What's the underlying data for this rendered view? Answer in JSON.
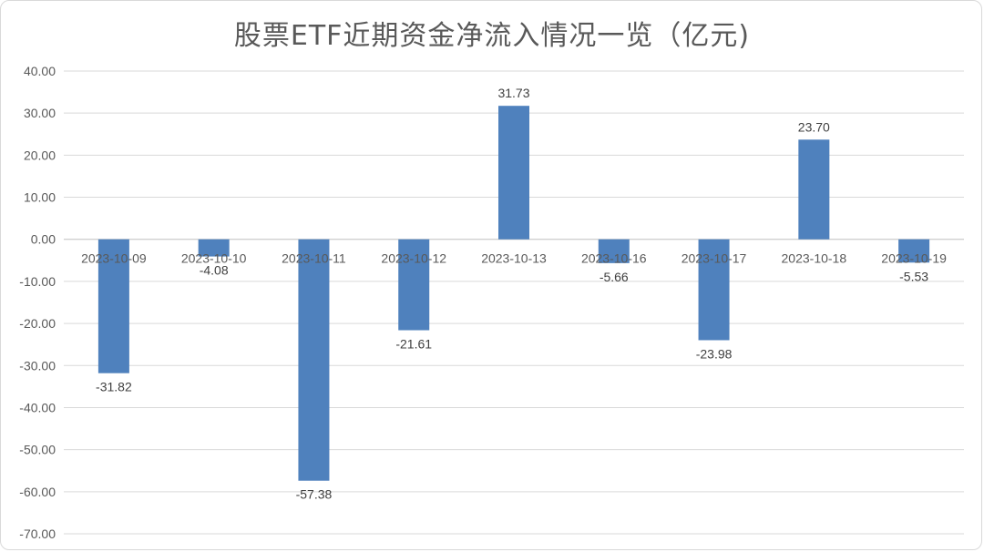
{
  "chart_data": {
    "type": "bar",
    "title": "股票ETF近期资金净流入情况一览（亿元)",
    "categories": [
      "2023-10-09",
      "2023-10-10",
      "2023-10-11",
      "2023-10-12",
      "2023-10-13",
      "2023-10-16",
      "2023-10-17",
      "2023-10-18",
      "2023-10-19"
    ],
    "values": [
      -31.82,
      -4.08,
      -57.38,
      -21.61,
      31.73,
      -5.66,
      -23.98,
      23.7,
      -5.53
    ],
    "data_labels": [
      "-31.82",
      "-4.08",
      "-57.38",
      "-21.61",
      "31.73",
      "-5.66",
      "-23.98",
      "23.70",
      "-5.53"
    ],
    "ylim": [
      -70,
      40
    ],
    "yticks": [
      "40.00",
      "30.00",
      "20.00",
      "10.00",
      "0.00",
      "-10.00",
      "-20.00",
      "-30.00",
      "-40.00",
      "-50.00",
      "-60.00",
      "-70.00"
    ],
    "ytick_values": [
      40,
      30,
      20,
      10,
      0,
      -10,
      -20,
      -30,
      -40,
      -50,
      -60,
      -70
    ],
    "grid": true,
    "legend": "none",
    "colors": {
      "bar": "#4f81bd",
      "grid": "#d9d9d9",
      "axis": "#bfbfbf"
    }
  }
}
